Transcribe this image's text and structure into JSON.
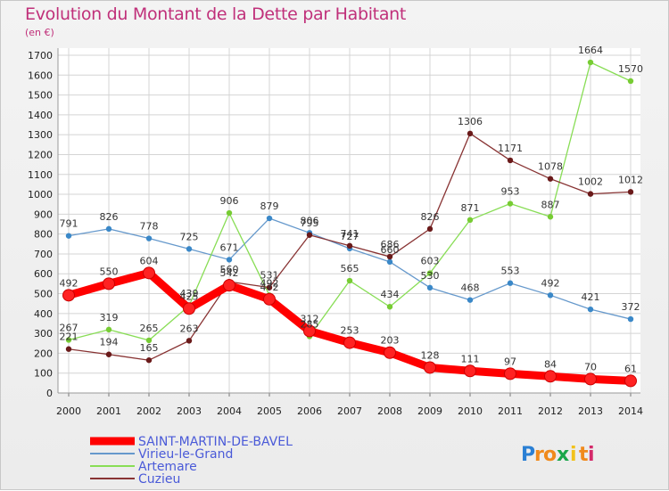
{
  "chart_data": {
    "type": "line",
    "title": "Evolution du Montant de la Dette par Habitant",
    "subtitle": "(en €)",
    "categories": [
      "2000",
      "2001",
      "2002",
      "2003",
      "2004",
      "2005",
      "2006",
      "2007",
      "2008",
      "2009",
      "2010",
      "2011",
      "2012",
      "2013",
      "2014"
    ],
    "ylim": [
      0,
      1700
    ],
    "yticks": [
      0,
      100,
      200,
      300,
      400,
      500,
      600,
      700,
      800,
      900,
      1000,
      1100,
      1200,
      1300,
      1400,
      1500,
      1600,
      1700
    ],
    "grid": true,
    "legend": "bottom-left",
    "series": [
      {
        "name": "SAINT-MARTIN-DE-BAVEL",
        "color": "#ff0000",
        "marker": "#dd0000",
        "emphasis": true,
        "values": [
          492,
          550,
          604,
          425,
          542,
          472,
          312,
          253,
          203,
          128,
          111,
          97,
          84,
          70,
          61
        ]
      },
      {
        "name": "Virieu-le-Grand",
        "color": "#6699cc",
        "marker": "#3a88c8",
        "values": [
          791,
          826,
          778,
          725,
          671,
          879,
          806,
          727,
          660,
          530,
          468,
          553,
          492,
          421,
          372
        ]
      },
      {
        "name": "Artemare",
        "color": "#88dd55",
        "marker": "#77cc33",
        "values": [
          267,
          319,
          265,
          439,
          906,
          492,
          285,
          565,
          434,
          603,
          871,
          953,
          887,
          1664,
          1570
        ]
      },
      {
        "name": "Cuzieu",
        "color": "#883333",
        "marker": "#6a1a1a",
        "values": [
          221,
          194,
          165,
          263,
          560,
          531,
          795,
          741,
          686,
          826,
          1306,
          1171,
          1078,
          1002,
          1012
        ]
      }
    ]
  },
  "legend": {
    "items": [
      {
        "label": "SAINT-MARTIN-DE-BAVEL",
        "color": "#ff0000"
      },
      {
        "label": "Virieu-le-Grand",
        "color": "#6699cc"
      },
      {
        "label": "Artemare",
        "color": "#88dd55"
      },
      {
        "label": "Cuzieu",
        "color": "#883333"
      }
    ]
  },
  "brand": {
    "letters": [
      "P",
      "r",
      "o",
      "x",
      "i",
      "t",
      "i"
    ],
    "colors": [
      "#2a7fd4",
      "#f08a1c",
      "#f08a1c",
      "#1aa64a",
      "#f2c21b",
      "#f08a1c",
      "#d42a6a"
    ]
  }
}
